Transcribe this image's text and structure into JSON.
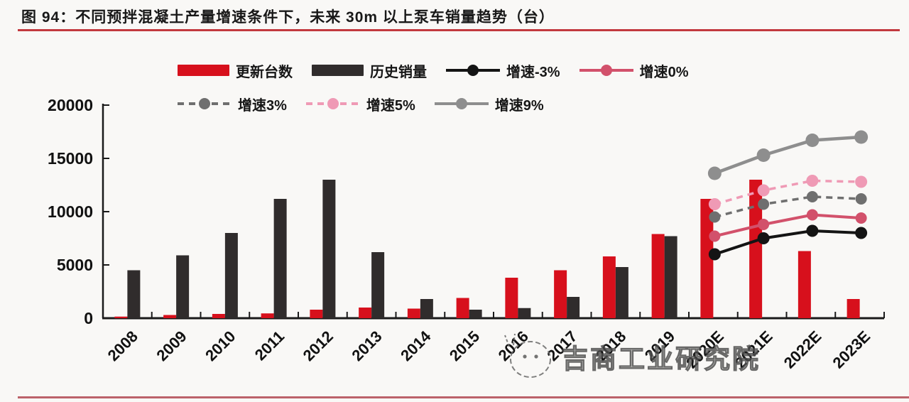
{
  "title": "图 94：不同预拌混凝土产量增速条件下，未来 30m 以上泵车销量趋势（台）",
  "watermark": "吉商工业研究院",
  "colors": {
    "red": "#d7101c",
    "dark": "#302c2c",
    "black": "#141414",
    "rose": "#d2516b",
    "gray_dashed": "#6f6f6f",
    "pink_dashed": "#ef9ab5",
    "gray": "#8e8e8e",
    "axis": "#1a1a1a",
    "text": "#111111",
    "title_underline": "#c2393f",
    "bottom_line": "#b5515b"
  },
  "legend": {
    "items": [
      {
        "label": "更新台数"
      },
      {
        "label": "历史销量"
      },
      {
        "label": "增速-3%"
      },
      {
        "label": "增速0%"
      },
      {
        "label": "增速3%"
      },
      {
        "label": "增速5%"
      },
      {
        "label": "增速9%"
      }
    ]
  },
  "chart_data": {
    "type": "bar+line",
    "title": "不同预拌混凝土产量增速条件下，未来 30m 以上泵车销量趋势（台）",
    "categories": [
      "2008",
      "2009",
      "2010",
      "2011",
      "2012",
      "2013",
      "2014",
      "2015",
      "2016",
      "2017",
      "2018",
      "2019",
      "2020E",
      "2021E",
      "2022E",
      "2023E"
    ],
    "ylim": [
      0,
      20000
    ],
    "yticks": [
      0,
      5000,
      10000,
      15000,
      20000
    ],
    "grid": false,
    "legend_position": "top",
    "series": [
      {
        "name": "更新台数",
        "type": "bar",
        "color": "red",
        "values": [
          150,
          300,
          400,
          450,
          800,
          1000,
          900,
          1900,
          3800,
          4500,
          5800,
          7900,
          11200,
          13000,
          6300,
          1800
        ]
      },
      {
        "name": "历史销量",
        "type": "bar",
        "color": "dark",
        "values": [
          4500,
          5900,
          8000,
          11200,
          13000,
          6200,
          1800,
          800,
          950,
          2000,
          4800,
          7700,
          null,
          null,
          null,
          null
        ]
      },
      {
        "name": "增速9%",
        "type": "line",
        "dash": false,
        "color": "gray",
        "values": [
          null,
          null,
          null,
          null,
          null,
          null,
          null,
          null,
          null,
          null,
          null,
          null,
          13600,
          15300,
          16700,
          17000
        ]
      },
      {
        "name": "增速5%",
        "type": "line",
        "dash": true,
        "color": "pink_dashed",
        "values": [
          null,
          null,
          null,
          null,
          null,
          null,
          null,
          null,
          null,
          null,
          null,
          null,
          10700,
          12000,
          12900,
          12800
        ]
      },
      {
        "name": "增速3%",
        "type": "line",
        "dash": true,
        "color": "gray_dashed",
        "values": [
          null,
          null,
          null,
          null,
          null,
          null,
          null,
          null,
          null,
          null,
          null,
          null,
          9500,
          10700,
          11400,
          11200
        ]
      },
      {
        "name": "增速0%",
        "type": "line",
        "dash": false,
        "color": "rose",
        "values": [
          null,
          null,
          null,
          null,
          null,
          null,
          null,
          null,
          null,
          null,
          null,
          null,
          7700,
          8800,
          9700,
          9400
        ]
      },
      {
        "name": "增速-3%",
        "type": "line",
        "dash": false,
        "color": "black",
        "values": [
          null,
          null,
          null,
          null,
          null,
          null,
          null,
          null,
          null,
          null,
          null,
          null,
          6000,
          7500,
          8200,
          8000
        ]
      }
    ]
  }
}
